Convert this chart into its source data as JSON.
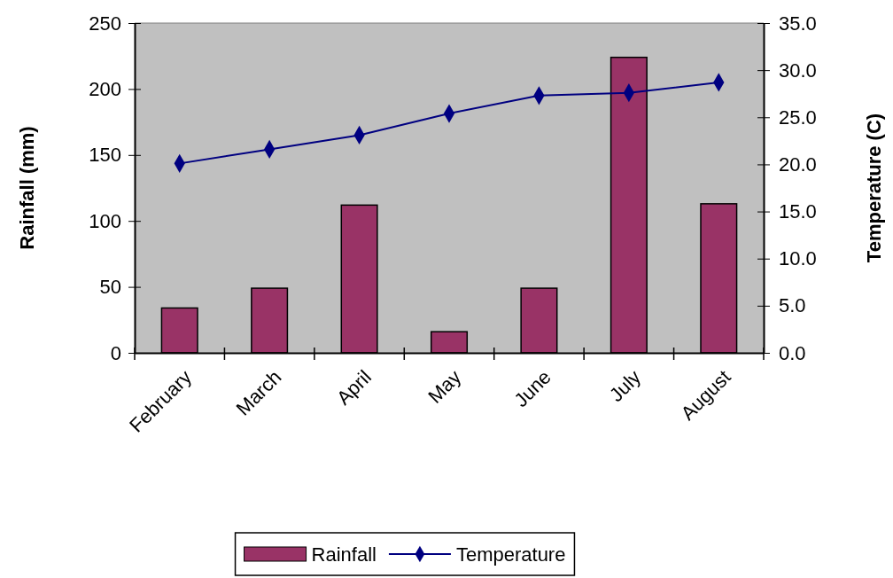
{
  "chart_data": {
    "type": "bar",
    "categories": [
      "February",
      "March",
      "April",
      "May",
      "June",
      "July",
      "August"
    ],
    "series": [
      {
        "name": "Rainfall",
        "color": "#993366",
        "values": [
          34,
          49,
          112,
          16,
          49,
          224,
          113
        ]
      },
      {
        "name": "Temperature",
        "type": "line",
        "axis": "y2",
        "color": "#000080",
        "marker": "diamond",
        "values": [
          20.1,
          21.6,
          23.1,
          25.4,
          27.3,
          27.6,
          28.7
        ]
      }
    ],
    "ylabel": "Rainfall (mm)",
    "y2label": "Temperature (C)",
    "ylim": [
      0,
      250
    ],
    "yticks": [
      0,
      50,
      100,
      150,
      200,
      250
    ],
    "y2lim": [
      0,
      35
    ],
    "y2ticks": [
      {
        "value": 0,
        "label": "0.0"
      },
      {
        "value": 5,
        "label": "5.0"
      },
      {
        "value": 10,
        "label": "10.0"
      },
      {
        "value": 15,
        "label": "15.0"
      },
      {
        "value": 20,
        "label": "20.0"
      },
      {
        "value": 25,
        "label": "25.0"
      },
      {
        "value": 30,
        "label": "30.0"
      },
      {
        "value": 35,
        "label": "35.0"
      }
    ],
    "grid": false,
    "legend": "bottom"
  }
}
